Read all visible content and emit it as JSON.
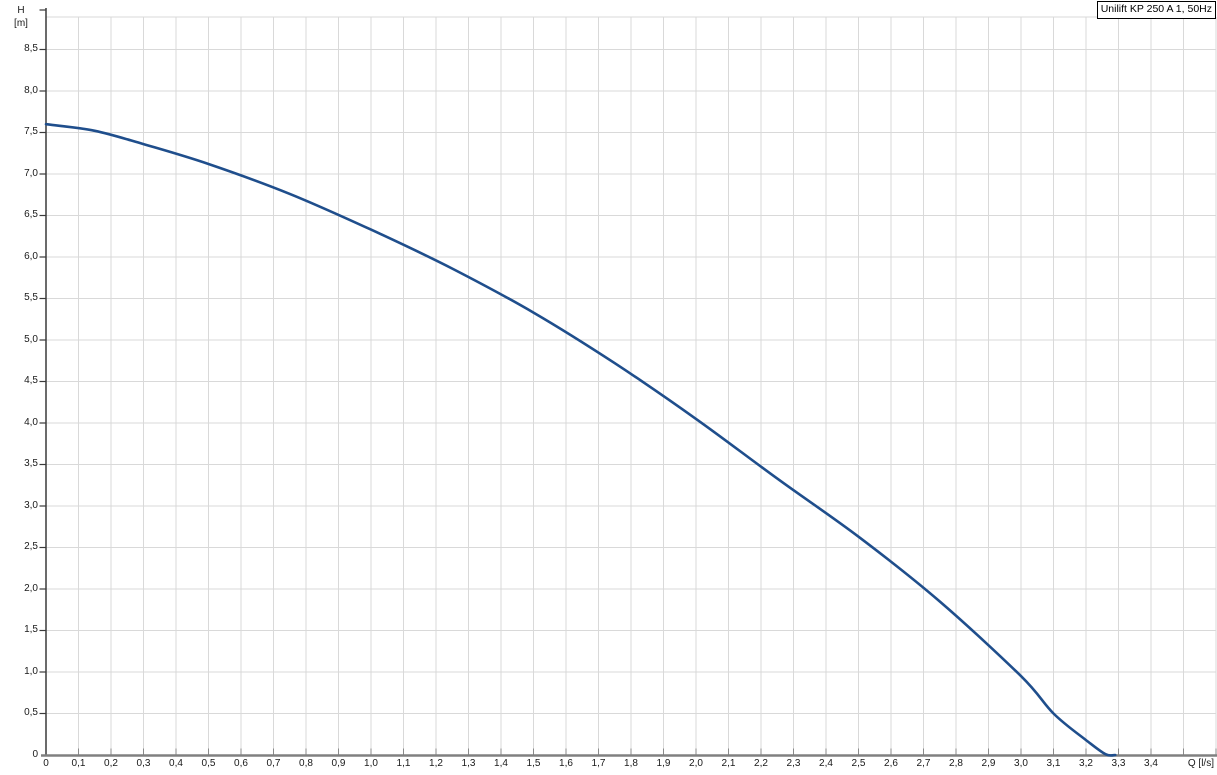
{
  "legend": {
    "label": "Unilift KP 250 A 1, 50Hz"
  },
  "chart_data": {
    "type": "line",
    "title": "",
    "xlabel": "Q [l/s]",
    "ylabel": "H [m]",
    "ylabel_lines": [
      "H",
      "[m]"
    ],
    "xlim": [
      0,
      3.6
    ],
    "ylim": [
      0,
      9.0
    ],
    "grid": true,
    "legend_position": "top-right",
    "x_tick_step": 0.1,
    "y_tick_step": 0.5,
    "x_tick_labels": [
      "0",
      "0,1",
      "0,2",
      "0,3",
      "0,4",
      "0,5",
      "0,6",
      "0,7",
      "0,8",
      "0,9",
      "1,0",
      "1,1",
      "1,2",
      "1,3",
      "1,4",
      "1,5",
      "1,6",
      "1,7",
      "1,8",
      "1,9",
      "2,0",
      "2,1",
      "2,2",
      "2,3",
      "2,4",
      "2,5",
      "2,6",
      "2,7",
      "2,8",
      "2,9",
      "3,0",
      "3,1",
      "3,2",
      "3,3",
      "3,4"
    ],
    "y_tick_labels": [
      "0",
      "0,5",
      "1,0",
      "1,5",
      "2,0",
      "2,5",
      "3,0",
      "3,5",
      "4,0",
      "4,5",
      "5,0",
      "5,5",
      "6,0",
      "6,5",
      "7,0",
      "7,5",
      "8,0",
      "8,5"
    ],
    "series": [
      {
        "name": "Unilift KP 250 A 1, 50Hz",
        "color": "#1f4e8c",
        "points": [
          [
            0.0,
            7.6
          ],
          [
            0.15,
            7.52
          ],
          [
            0.3,
            7.36
          ],
          [
            0.5,
            7.12
          ],
          [
            0.75,
            6.76
          ],
          [
            1.0,
            6.33
          ],
          [
            1.25,
            5.86
          ],
          [
            1.5,
            5.33
          ],
          [
            1.75,
            4.72
          ],
          [
            2.0,
            4.05
          ],
          [
            2.25,
            3.33
          ],
          [
            2.5,
            2.63
          ],
          [
            2.75,
            1.85
          ],
          [
            3.0,
            0.95
          ],
          [
            3.1,
            0.5
          ],
          [
            3.2,
            0.18
          ],
          [
            3.26,
            0.01
          ],
          [
            3.29,
            0.0
          ]
        ]
      }
    ],
    "colors": {
      "background": "#ffffff",
      "grid": "#d9d9d9",
      "x_axis": "#808080",
      "y_axis": "#3a3a3a",
      "tick": "#8a8a8a",
      "text": "#1a1a1a",
      "curve": "#1f4e8c",
      "legend_border": "#000000"
    }
  }
}
